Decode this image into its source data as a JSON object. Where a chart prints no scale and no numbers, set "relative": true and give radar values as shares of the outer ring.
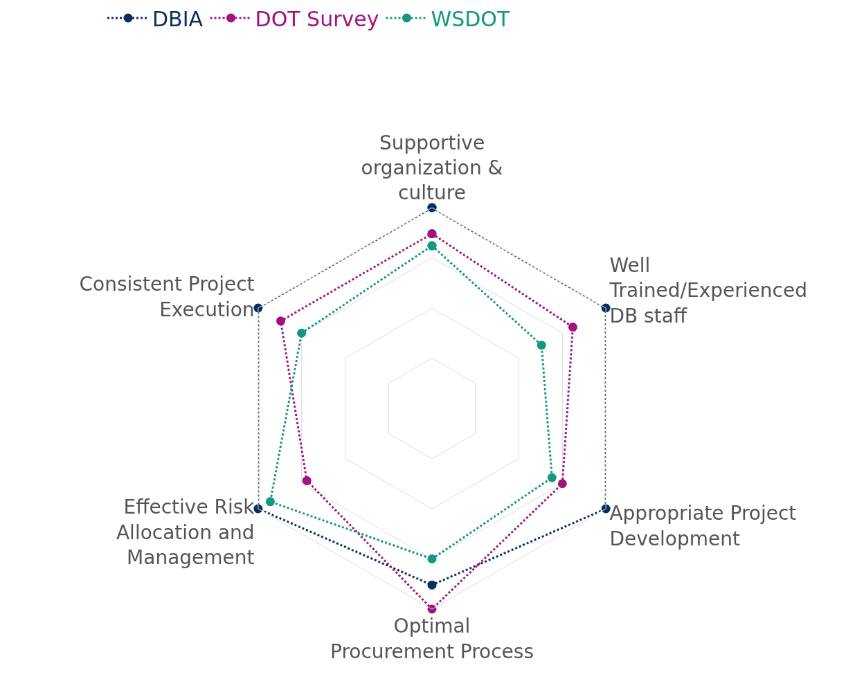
{
  "chart_data": {
    "type": "radar",
    "relative": true,
    "grid": true,
    "legend": "top left",
    "marker": "circle",
    "line_style": "dotted",
    "categories": [
      "Supportive\norganization &\nculture",
      "Well\nTrained/Experienced\nDB staff",
      "Appropriate Project\nDevelopment",
      "Optimal\nProcurement Process",
      "Effective Risk\nAllocation and\nManagement",
      "Consistent Project\nExecution"
    ],
    "series": [
      {
        "name": "DBIA",
        "color": "#0b2d5e",
        "values": [
          1.0,
          1.0,
          1.0,
          0.88,
          1.0,
          1.0
        ]
      },
      {
        "name": "DOT Survey",
        "color": "#a3117f",
        "values": [
          0.87,
          0.81,
          0.75,
          1.0,
          0.72,
          0.87
        ]
      },
      {
        "name": "WSDOT",
        "color": "#14977f",
        "values": [
          0.81,
          0.63,
          0.69,
          0.75,
          0.93,
          0.75
        ]
      }
    ]
  }
}
